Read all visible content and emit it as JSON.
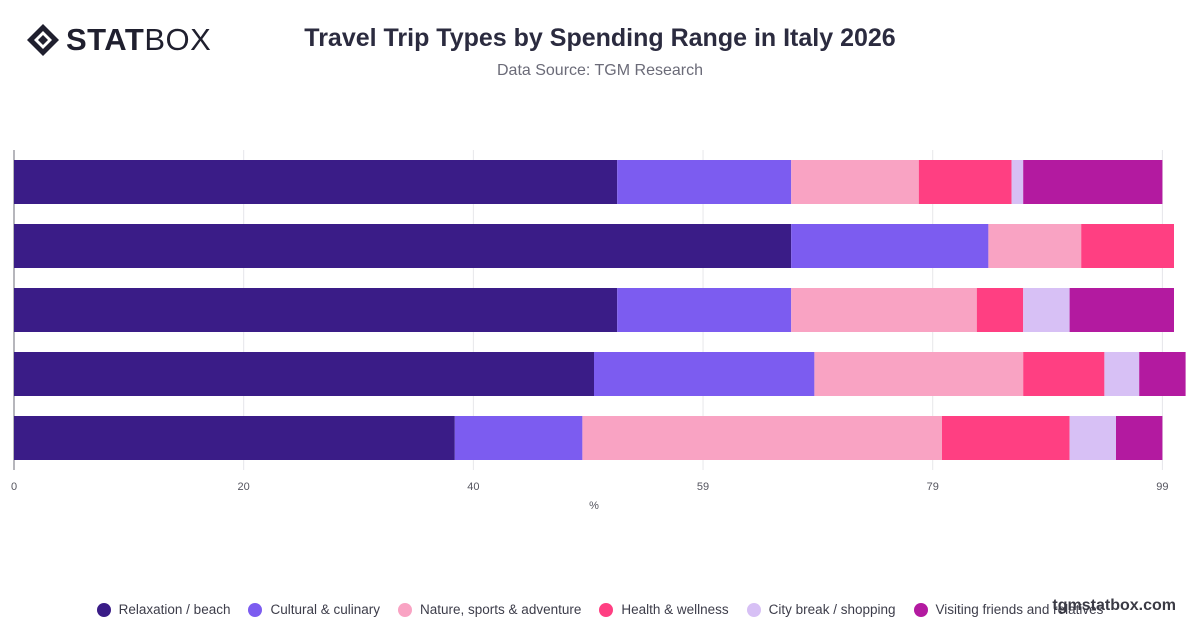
{
  "header": {
    "logo_bold": "STAT",
    "logo_light": "BOX",
    "title": "Travel Trip Types by Spending Range in Italy 2026",
    "subtitle": "Data Source: TGM Research"
  },
  "watermark": "tgmstatbox.com",
  "chart_data": {
    "type": "bar",
    "orientation": "horizontal",
    "stacked": true,
    "title": "Travel Trip Types by Spending Range in Italy 2026",
    "subtitle": "Data Source: TGM Research",
    "xlabel": "%",
    "ylabel": "",
    "xlim": [
      0,
      100
    ],
    "x_ticks": [
      "0",
      "20",
      "40",
      "59",
      "79",
      "99"
    ],
    "x_tick_values": [
      0,
      19.8,
      39.6,
      59.4,
      79.2,
      99
    ],
    "categories": [
      "",
      "",
      "",
      "",
      ""
    ],
    "grid": true,
    "legend_position": "bottom",
    "series": [
      {
        "name": "Relaxation / beach",
        "color": "#3a1c87",
        "values": [
          52,
          67,
          52,
          50,
          38
        ]
      },
      {
        "name": "Cultural & culinary",
        "color": "#7c5cf0",
        "values": [
          15,
          17,
          15,
          19,
          11
        ]
      },
      {
        "name": "Nature, sports & adventure",
        "color": "#f9a3c3",
        "values": [
          11,
          8,
          16,
          18,
          31
        ]
      },
      {
        "name": "Health & wellness",
        "color": "#ff3f82",
        "values": [
          8,
          8,
          4,
          7,
          11
        ]
      },
      {
        "name": "City break / shopping",
        "color": "#d7c0f5",
        "values": [
          1,
          0,
          4,
          3,
          4
        ]
      },
      {
        "name": "Visiting friends and relatives",
        "color": "#b31aa0",
        "values": [
          12,
          0,
          9,
          4,
          4
        ]
      }
    ]
  }
}
